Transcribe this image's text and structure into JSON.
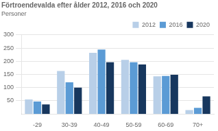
{
  "chart_data": {
    "type": "bar",
    "title": "Förtroendevalda efter ålder 2012, 2016 och 2020",
    "ylabel": "Personer",
    "categories": [
      "-29",
      "30-39",
      "40-49",
      "50-59",
      "60-69",
      "70+"
    ],
    "series": [
      {
        "name": "2012",
        "color": "#b8cfe8",
        "values": [
          55,
          163,
          232,
          205,
          143,
          15
        ]
      },
      {
        "name": "2016",
        "color": "#5b9bd5",
        "values": [
          47,
          120,
          244,
          196,
          144,
          23
        ]
      },
      {
        "name": "2020",
        "color": "#17375e",
        "values": [
          36,
          100,
          196,
          188,
          149,
          67
        ]
      }
    ],
    "ylim": [
      0,
      300
    ],
    "yticks": [
      50,
      100,
      150,
      200,
      250,
      300
    ],
    "grid": true,
    "legend": "upper right"
  }
}
